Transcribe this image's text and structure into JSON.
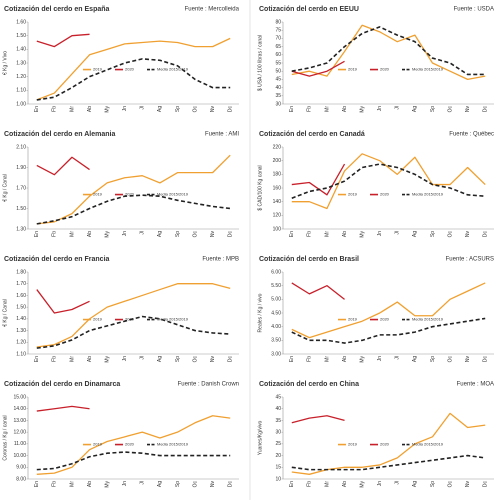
{
  "chart_data": [
    {
      "type": "line",
      "title": "Cotización del cerdo en España",
      "source": "Fuente : Mercolleida",
      "y_label": "€ Kg / Vivo",
      "categories": [
        "En",
        "Fb",
        "Mr",
        "Ab",
        "My",
        "Jn",
        "Jl",
        "Ag",
        "Sp",
        "Oc",
        "Nv",
        "Dc"
      ],
      "ylim": [
        1.0,
        1.6
      ],
      "yticks": [
        {
          "value": 1.0,
          "label": "1.00"
        },
        {
          "value": 1.1,
          "label": "1.10"
        },
        {
          "value": 1.2,
          "label": "1.20"
        },
        {
          "value": 1.3,
          "label": "1.30"
        },
        {
          "value": 1.4,
          "label": "1.40"
        },
        {
          "value": 1.5,
          "label": "1.50"
        },
        {
          "value": 1.6,
          "label": "1.60"
        }
      ],
      "series": [
        {
          "name": "2019",
          "color": "#f0a030",
          "values": [
            1.03,
            1.08,
            1.22,
            1.36,
            1.4,
            1.44,
            1.45,
            1.46,
            1.45,
            1.42,
            1.42,
            1.48
          ]
        },
        {
          "name": "2020",
          "color": "#c8202a",
          "values": [
            1.46,
            1.42,
            1.5,
            1.51,
            null,
            null,
            null,
            null,
            null,
            null,
            null,
            null
          ]
        },
        {
          "name": "Media 2015/2019",
          "color": "#222222",
          "dashed": true,
          "values": [
            1.03,
            1.05,
            1.12,
            1.2,
            1.25,
            1.3,
            1.33,
            1.32,
            1.28,
            1.18,
            1.12,
            1.12
          ]
        }
      ]
    },
    {
      "type": "line",
      "title": "Cotización del cerdo en EEUU",
      "source": "Fuente : USDA",
      "y_label": "$ USA / 100 libras / canal",
      "categories": [
        "En",
        "Fb",
        "Mr",
        "Ab",
        "My",
        "Jn",
        "Jl",
        "Ag",
        "Sp",
        "Oc",
        "Nv",
        "Dc"
      ],
      "ylim": [
        30,
        80
      ],
      "yticks": [
        30,
        35,
        40,
        45,
        50,
        55,
        60,
        65,
        70,
        75,
        80
      ],
      "series": [
        {
          "name": "2019",
          "color": "#f0a030",
          "values": [
            48,
            50,
            47,
            62,
            78,
            74,
            68,
            72,
            55,
            50,
            45,
            47
          ]
        },
        {
          "name": "2020",
          "color": "#c8202a",
          "values": [
            50,
            47,
            50,
            56,
            null,
            null,
            null,
            null,
            null,
            null,
            null,
            null
          ]
        },
        {
          "name": "Media 2015/2019",
          "color": "#222222",
          "dashed": true,
          "values": [
            50,
            52,
            55,
            65,
            73,
            77,
            72,
            68,
            58,
            55,
            48,
            48
          ]
        }
      ]
    },
    {
      "type": "line",
      "title": "Cotización del cerdo en Alemania",
      "source": "Fuente : AMI",
      "y_label": "€ Kg / Canal",
      "categories": [
        "En",
        "Fb",
        "Mr",
        "Ab",
        "My",
        "Jn",
        "Jl",
        "Ag",
        "Sp",
        "Oc",
        "Nv",
        "Dc"
      ],
      "ylim": [
        1.3,
        2.1
      ],
      "yticks": [
        {
          "value": 1.3,
          "label": "1.30"
        },
        {
          "value": 1.5,
          "label": "1.50"
        },
        {
          "value": 1.7,
          "label": "1.70"
        },
        {
          "value": 1.9,
          "label": "1.90"
        },
        {
          "value": 2.1,
          "label": "2.10"
        }
      ],
      "series": [
        {
          "name": "2019",
          "color": "#f0a030",
          "values": [
            1.35,
            1.37,
            1.45,
            1.62,
            1.75,
            1.8,
            1.82,
            1.75,
            1.85,
            1.85,
            1.85,
            2.02
          ]
        },
        {
          "name": "2020",
          "color": "#c8202a",
          "values": [
            1.92,
            1.83,
            2.0,
            1.88,
            null,
            null,
            null,
            null,
            null,
            null,
            null,
            null
          ]
        },
        {
          "name": "Media 2015/2019",
          "color": "#222222",
          "dashed": true,
          "values": [
            1.35,
            1.38,
            1.42,
            1.5,
            1.57,
            1.62,
            1.63,
            1.62,
            1.58,
            1.55,
            1.52,
            1.5
          ]
        }
      ]
    },
    {
      "type": "line",
      "title": "Cotización del cerdo en Canadá",
      "source": "Fuente : Québec",
      "y_label": "$ CAD/100 Kg canal",
      "categories": [
        "En",
        "Fb",
        "Mr",
        "Ab",
        "My",
        "Jn",
        "Jl",
        "Ag",
        "Sp",
        "Oc",
        "Nv",
        "Dc"
      ],
      "ylim": [
        100,
        220
      ],
      "yticks": [
        100,
        120,
        140,
        160,
        180,
        200,
        220
      ],
      "series": [
        {
          "name": "2019",
          "color": "#f0a030",
          "values": [
            140,
            140,
            130,
            185,
            210,
            200,
            180,
            205,
            165,
            165,
            190,
            165
          ]
        },
        {
          "name": "2020",
          "color": "#c8202a",
          "values": [
            165,
            168,
            150,
            195,
            null,
            null,
            null,
            null,
            null,
            null,
            null,
            null
          ]
        },
        {
          "name": "Media 2015/2019",
          "color": "#222222",
          "dashed": true,
          "values": [
            145,
            155,
            160,
            170,
            190,
            195,
            190,
            180,
            165,
            160,
            150,
            148
          ]
        }
      ]
    },
    {
      "type": "line",
      "title": "Cotización del cerdo en Francia",
      "source": "Fuente : MPB",
      "y_label": "€ Kg / Canal",
      "categories": [
        "En",
        "Fb",
        "Mr",
        "Ab",
        "My",
        "Jn",
        "Jl",
        "Ag",
        "Sp",
        "Oc",
        "Nv",
        "Dc"
      ],
      "ylim": [
        1.1,
        1.8
      ],
      "yticks": [
        {
          "value": 1.1,
          "label": "1.10"
        },
        {
          "value": 1.2,
          "label": "1.20"
        },
        {
          "value": 1.3,
          "label": "1.30"
        },
        {
          "value": 1.4,
          "label": "1.40"
        },
        {
          "value": 1.5,
          "label": "1.50"
        },
        {
          "value": 1.6,
          "label": "1.60"
        },
        {
          "value": 1.7,
          "label": "1.70"
        },
        {
          "value": 1.8,
          "label": "1.80"
        }
      ],
      "series": [
        {
          "name": "2019",
          "color": "#f0a030",
          "values": [
            1.16,
            1.18,
            1.25,
            1.4,
            1.5,
            1.55,
            1.6,
            1.65,
            1.7,
            1.7,
            1.7,
            1.66
          ]
        },
        {
          "name": "2020",
          "color": "#c8202a",
          "values": [
            1.65,
            1.45,
            1.48,
            1.55,
            null,
            null,
            null,
            null,
            null,
            null,
            null,
            null
          ]
        },
        {
          "name": "Media 2015/2019",
          "color": "#222222",
          "dashed": true,
          "values": [
            1.15,
            1.17,
            1.22,
            1.3,
            1.34,
            1.38,
            1.42,
            1.4,
            1.35,
            1.3,
            1.28,
            1.27
          ]
        }
      ]
    },
    {
      "type": "line",
      "title": "Cotización del cerdo en Brasil",
      "source": "Fuente : ACSURS",
      "y_label": "Reales / Kg / vivo",
      "categories": [
        "En",
        "Fb",
        "Mr",
        "Ab",
        "My",
        "Jn",
        "Jl",
        "Ag",
        "Sp",
        "Oc",
        "Nv",
        "Dc"
      ],
      "ylim": [
        3,
        6
      ],
      "yticks": [
        {
          "value": 3,
          "label": "3.00"
        },
        {
          "value": 3.5,
          "label": "3.50"
        },
        {
          "value": 4,
          "label": "4.00"
        },
        {
          "value": 4.5,
          "label": "4.50"
        },
        {
          "value": 5,
          "label": "5.00"
        },
        {
          "value": 5.5,
          "label": "5.50"
        },
        {
          "value": 6,
          "label": "6.00"
        }
      ],
      "series": [
        {
          "name": "2019",
          "color": "#f0a030",
          "values": [
            3.9,
            3.6,
            3.8,
            4.0,
            4.2,
            4.5,
            4.9,
            4.4,
            4.4,
            5.0,
            5.3,
            5.6
          ]
        },
        {
          "name": "2020",
          "color": "#c8202a",
          "values": [
            5.6,
            5.2,
            5.5,
            5.0,
            null,
            null,
            null,
            null,
            null,
            null,
            null,
            null
          ]
        },
        {
          "name": "Media 2015/2019",
          "color": "#222222",
          "dashed": true,
          "values": [
            3.8,
            3.5,
            3.5,
            3.4,
            3.5,
            3.7,
            3.7,
            3.8,
            4.0,
            4.1,
            4.2,
            4.3
          ]
        }
      ]
    },
    {
      "type": "line",
      "title": "Cotización del cerdo en Dinamarca",
      "source": "Fuente : Danish Crown",
      "y_label": "Coronas / Kg / canal",
      "categories": [
        "En",
        "Fb",
        "Mr",
        "Ab",
        "My",
        "Jn",
        "Jl",
        "Ag",
        "Sp",
        "Oc",
        "Nv",
        "Dc"
      ],
      "ylim": [
        8,
        15
      ],
      "yticks": [
        {
          "value": 8,
          "label": "8.00"
        },
        {
          "value": 9,
          "label": "9.00"
        },
        {
          "value": 10,
          "label": "10.00"
        },
        {
          "value": 11,
          "label": "11.00"
        },
        {
          "value": 12,
          "label": "12.00"
        },
        {
          "value": 13,
          "label": "13.00"
        },
        {
          "value": 14,
          "label": "14.00"
        },
        {
          "value": 15,
          "label": "15.00"
        }
      ],
      "series": [
        {
          "name": "2019",
          "color": "#f0a030",
          "values": [
            8.4,
            8.5,
            9.0,
            10.5,
            11.2,
            11.6,
            12.0,
            11.5,
            12.0,
            12.8,
            13.4,
            13.2
          ]
        },
        {
          "name": "2020",
          "color": "#c8202a",
          "values": [
            13.8,
            14.0,
            14.2,
            14.0,
            null,
            null,
            null,
            null,
            null,
            null,
            null,
            null
          ]
        },
        {
          "name": "Media 2015/2019",
          "color": "#222222",
          "dashed": true,
          "values": [
            8.8,
            8.9,
            9.3,
            9.9,
            10.2,
            10.3,
            10.2,
            10.0,
            10.0,
            10.0,
            10.0,
            10.0
          ]
        }
      ]
    },
    {
      "type": "line",
      "title": "Cotización del cerdo en China",
      "source": "Fuente : MOA",
      "y_label": "Yuanes/Kg/vivo",
      "categories": [
        "En",
        "Fb",
        "Mr",
        "Ab",
        "My",
        "Jn",
        "Jl",
        "Ag",
        "Sp",
        "Oc",
        "Nv",
        "Dc"
      ],
      "ylim": [
        10,
        45
      ],
      "yticks": [
        10,
        15,
        20,
        25,
        30,
        35,
        40,
        45
      ],
      "series": [
        {
          "name": "2019",
          "color": "#f0a030",
          "values": [
            13,
            12,
            14,
            15,
            15,
            16,
            19,
            25,
            28,
            38,
            32,
            33
          ]
        },
        {
          "name": "2020",
          "color": "#c8202a",
          "values": [
            34,
            36,
            37,
            35,
            null,
            null,
            null,
            null,
            null,
            null,
            null,
            null
          ]
        },
        {
          "name": "Media 2015/2019",
          "color": "#222222",
          "dashed": true,
          "values": [
            15,
            14,
            14,
            14,
            14,
            15,
            16,
            17,
            18,
            19,
            20,
            19
          ]
        }
      ]
    }
  ]
}
